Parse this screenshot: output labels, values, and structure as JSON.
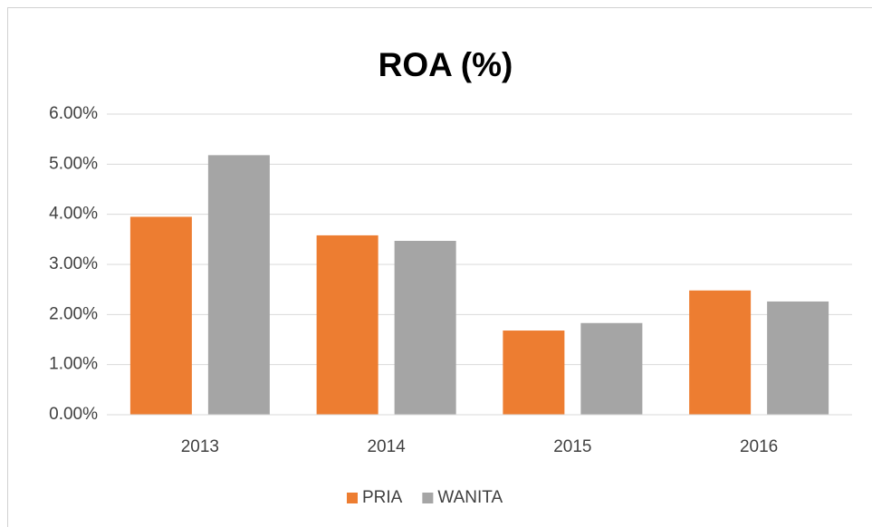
{
  "chart_data": {
    "type": "bar",
    "title": "ROA (%)",
    "categories": [
      "2013",
      "2014",
      "2015",
      "2016"
    ],
    "series": [
      {
        "name": "PRIA",
        "color": "#ed7d31",
        "values": [
          3.95,
          3.58,
          1.68,
          2.48
        ]
      },
      {
        "name": "WANITA",
        "color": "#a5a5a5",
        "values": [
          5.18,
          3.47,
          1.83,
          2.26
        ]
      }
    ],
    "ylim": [
      0,
      6
    ],
    "yticks": [
      {
        "value": 0,
        "label": "0.00%"
      },
      {
        "value": 1,
        "label": "1.00%"
      },
      {
        "value": 2,
        "label": "2.00%"
      },
      {
        "value": 3,
        "label": "3.00%"
      },
      {
        "value": 4,
        "label": "4.00%"
      },
      {
        "value": 5,
        "label": "5.00%"
      },
      {
        "value": 6,
        "label": "6.00%"
      }
    ],
    "grid": true,
    "legend": "bottom"
  }
}
